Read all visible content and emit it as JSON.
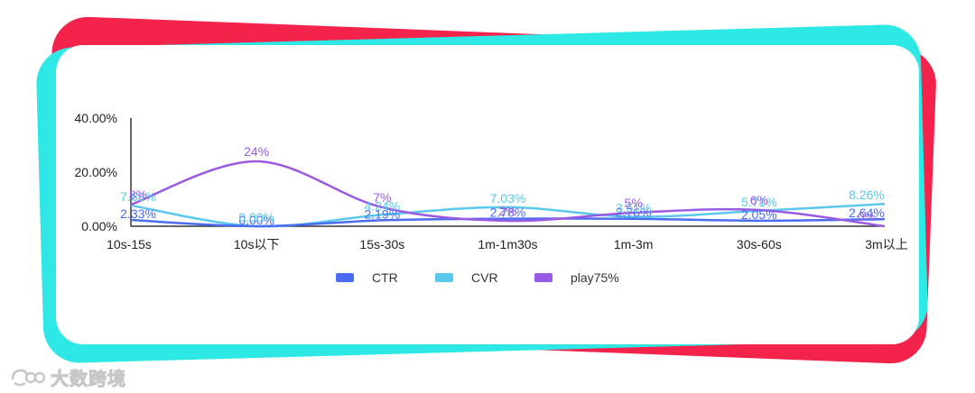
{
  "chart_data": {
    "type": "line",
    "categories": [
      "10s-15s",
      "10s以下",
      "15s-30s",
      "1m-1m30s",
      "1m-3m",
      "30s-60s",
      "3m以上"
    ],
    "y_ticks": [
      "0.00%",
      "20.00%",
      "40.00%"
    ],
    "ylim": [
      0,
      40
    ],
    "series": [
      {
        "name": "CTR",
        "color": "#4a6cf0",
        "values": [
          2.33,
          0.0,
          2.19,
          2.78,
          2.76,
          2.05,
          2.64
        ],
        "labels": [
          "2.33%",
          "0.00%",
          "2.19%",
          "2.78%",
          "2.76%",
          "2.05%",
          "2.64%"
        ]
      },
      {
        "name": "CVR",
        "color": "#5ac8ec",
        "values": [
          7.69,
          0.0,
          4.24,
          7.03,
          3.51,
          5.71,
          8.26
        ],
        "labels": [
          "7.69%",
          "0.00%",
          "4.24%",
          "7.03%",
          "3.51%",
          "5.71%",
          "8.26%"
        ]
      },
      {
        "name": "play75%",
        "color": "#9b5ae3",
        "values": [
          8,
          24,
          7,
          2,
          5,
          6,
          0
        ],
        "labels": [
          "8%",
          "24%",
          "7%",
          "2%",
          "5%",
          "6%",
          "0%"
        ]
      }
    ],
    "legend_position": "bottom",
    "grid": false
  },
  "watermark": {
    "text": "大数跨境"
  }
}
